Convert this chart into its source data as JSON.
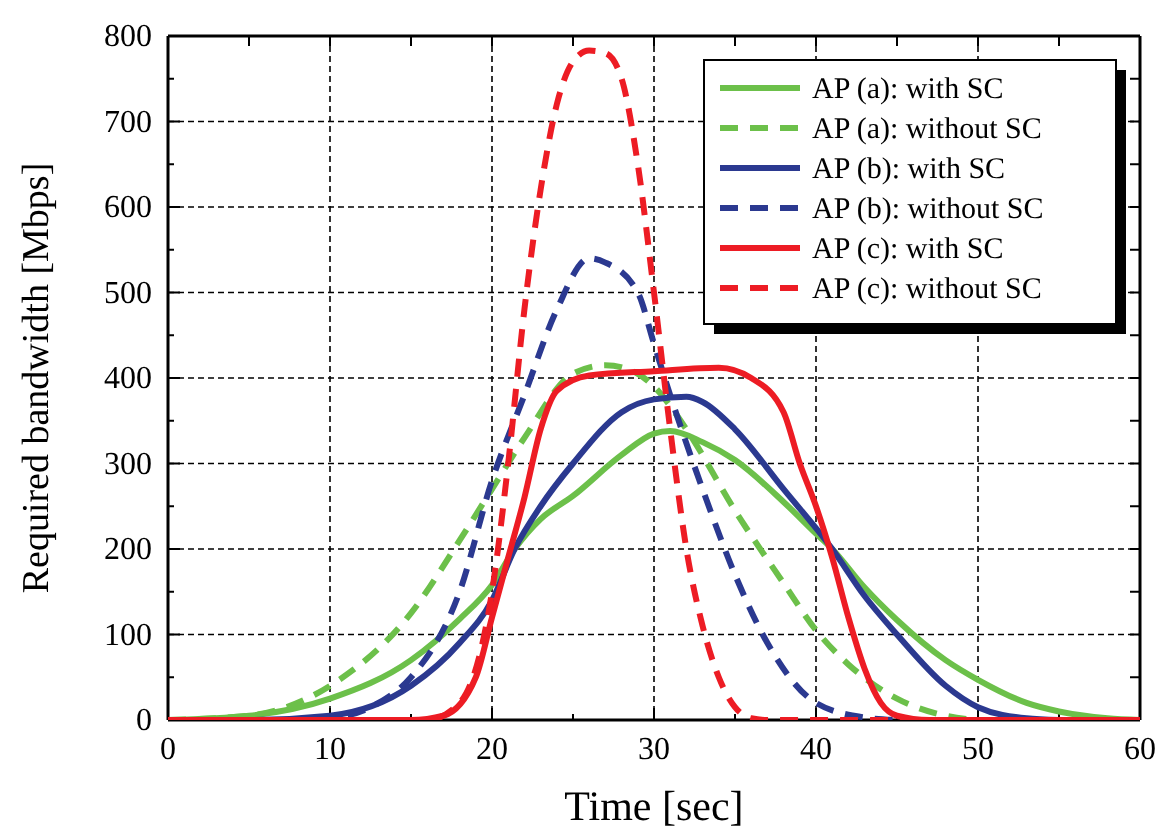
{
  "chart_data": {
    "type": "line",
    "xlabel": "Time [sec]",
    "ylabel": "Required bandwidth [Mbps]",
    "xlim": [
      0,
      60
    ],
    "ylim": [
      0,
      800
    ],
    "xticks": [
      0,
      {
        "value": 5,
        "label": null
      },
      10,
      {
        "value": 15,
        "label": null
      },
      20,
      {
        "value": 25,
        "label": null
      },
      30,
      {
        "value": 35,
        "label": null
      },
      40,
      {
        "value": 45,
        "label": null
      },
      50,
      {
        "value": 55,
        "label": null
      },
      60
    ],
    "yticks": [
      0,
      {
        "value": 50,
        "label": null
      },
      100,
      {
        "value": 150,
        "label": null
      },
      200,
      {
        "value": 250,
        "label": null
      },
      300,
      {
        "value": 350,
        "label": null
      },
      400,
      {
        "value": 450,
        "label": null
      },
      500,
      {
        "value": 550,
        "label": null
      },
      600,
      {
        "value": 650,
        "label": null
      },
      700,
      {
        "value": 750,
        "label": null
      },
      800
    ],
    "grid": true,
    "legend": "top right",
    "series": [
      {
        "name": "AP (a): with SC",
        "color": "#6cc04a",
        "line_style": "solid",
        "x": [
          0,
          5,
          10,
          15,
          18,
          20,
          21.4,
          23,
          25,
          28,
          30,
          31,
          33,
          35,
          38,
          40,
          41,
          43,
          45,
          48,
          50,
          53,
          55,
          58,
          60
        ],
        "values": [
          0,
          5,
          25,
          70,
          118,
          158,
          200,
          235,
          262,
          310,
          335,
          338,
          325,
          304,
          255,
          218,
          200,
          155,
          117,
          70,
          47,
          20,
          10,
          2,
          0
        ]
      },
      {
        "name": "AP (a): without SC",
        "color": "#6cc04a",
        "line_style": "dashed",
        "x": [
          0,
          5,
          10,
          15,
          18,
          20,
          22,
          25,
          27,
          29,
          30,
          32,
          35,
          38,
          40,
          42,
          45,
          48,
          50
        ],
        "values": [
          0,
          5,
          40,
          125,
          210,
          270,
          330,
          405,
          415,
          405,
          390,
          340,
          245,
          160,
          105,
          65,
          25,
          5,
          0
        ]
      },
      {
        "name": "AP (b): with SC",
        "color": "#2b3990",
        "line_style": "solid",
        "x": [
          0,
          5,
          10,
          15,
          18,
          20,
          21.4,
          23,
          25,
          28,
          30,
          32,
          33,
          35,
          38,
          41,
          43,
          45,
          48,
          50,
          53,
          55
        ],
        "values": [
          0,
          0,
          5,
          40,
          90,
          140,
          200,
          250,
          300,
          360,
          375,
          378,
          372,
          340,
          270,
          200,
          145,
          100,
          40,
          15,
          2,
          0
        ]
      },
      {
        "name": "AP (b): without SC",
        "color": "#2b3990",
        "line_style": "dashed",
        "x": [
          0,
          8,
          10,
          13,
          15,
          18,
          20,
          22,
          24,
          26,
          27,
          29,
          30,
          31,
          33,
          35,
          37,
          40,
          43,
          45
        ],
        "values": [
          0,
          0,
          2,
          20,
          50,
          150,
          280,
          380,
          480,
          540,
          535,
          500,
          440,
          380,
          270,
          170,
          90,
          20,
          3,
          0
        ]
      },
      {
        "name": "AP (c): with SC",
        "color": "#ed1c24",
        "line_style": "solid",
        "x": [
          0,
          15,
          17,
          19,
          20,
          21,
          22,
          23,
          24,
          26,
          30,
          34,
          36,
          38,
          39,
          40,
          41,
          42,
          43,
          44,
          45,
          47,
          60
        ],
        "values": [
          0,
          0,
          5,
          50,
          120,
          190,
          260,
          340,
          385,
          403,
          408,
          412,
          400,
          360,
          300,
          250,
          190,
          120,
          60,
          20,
          5,
          0,
          0
        ]
      },
      {
        "name": "AP (c): without SC",
        "color": "#ed1c24",
        "line_style": "dashed",
        "x": [
          0,
          16,
          18,
          20,
          21,
          22,
          23,
          24,
          25,
          26,
          27,
          28,
          29,
          30,
          31,
          32,
          33,
          34,
          35,
          36,
          37,
          60
        ],
        "values": [
          0,
          0,
          20,
          150,
          300,
          480,
          620,
          720,
          770,
          783,
          780,
          750,
          650,
          500,
          340,
          200,
          110,
          50,
          15,
          2,
          0,
          0
        ]
      }
    ]
  }
}
